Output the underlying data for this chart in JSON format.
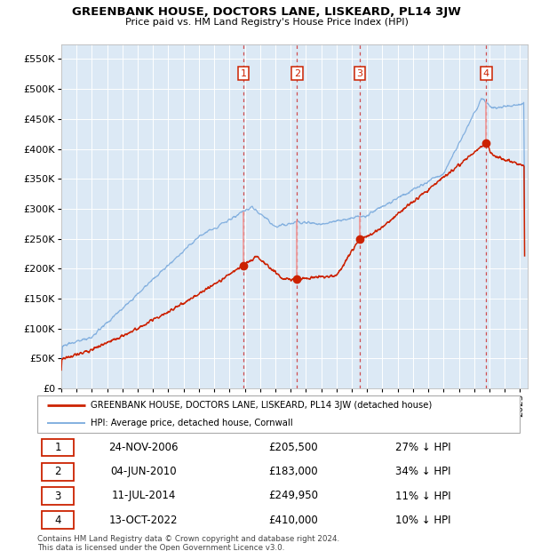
{
  "title": "GREENBANK HOUSE, DOCTORS LANE, LISKEARD, PL14 3JW",
  "subtitle": "Price paid vs. HM Land Registry's House Price Index (HPI)",
  "plot_bg_color": "#dce9f5",
  "hpi_color": "#7aaadd",
  "price_color": "#cc2200",
  "transactions": [
    {
      "num": 1,
      "date": "24-NOV-2006",
      "year": 2006.9,
      "price": 205500,
      "pct": "27% ↓ HPI"
    },
    {
      "num": 2,
      "date": "04-JUN-2010",
      "year": 2010.42,
      "price": 183000,
      "pct": "34% ↓ HPI"
    },
    {
      "num": 3,
      "date": "11-JUL-2014",
      "year": 2014.52,
      "price": 249950,
      "pct": "11% ↓ HPI"
    },
    {
      "num": 4,
      "date": "13-OCT-2022",
      "year": 2022.78,
      "price": 410000,
      "pct": "10% ↓ HPI"
    }
  ],
  "legend_line1": "GREENBANK HOUSE, DOCTORS LANE, LISKEARD, PL14 3JW (detached house)",
  "legend_line2": "HPI: Average price, detached house, Cornwall",
  "footer1": "Contains HM Land Registry data © Crown copyright and database right 2024.",
  "footer2": "This data is licensed under the Open Government Licence v3.0.",
  "ylim": [
    0,
    575000
  ],
  "xlim_start": 1995.0,
  "xlim_end": 2025.5,
  "yticks": [
    0,
    50000,
    100000,
    150000,
    200000,
    250000,
    300000,
    350000,
    400000,
    450000,
    500000,
    550000
  ]
}
